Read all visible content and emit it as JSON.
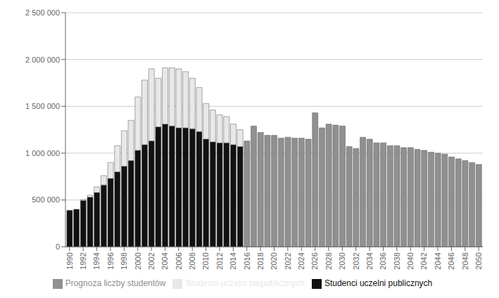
{
  "chart_data": {
    "type": "bar",
    "stacked": true,
    "grid": true,
    "legend": "bottom",
    "x": [
      1990,
      1991,
      1992,
      1993,
      1994,
      1995,
      1996,
      1997,
      1998,
      1999,
      2000,
      2001,
      2002,
      2003,
      2004,
      2005,
      2006,
      2007,
      2008,
      2009,
      2010,
      2011,
      2012,
      2013,
      2014,
      2015,
      2016,
      2017,
      2018,
      2019,
      2020,
      2021,
      2022,
      2023,
      2024,
      2025,
      2026,
      2027,
      2028,
      2029,
      2030,
      2031,
      2032,
      2033,
      2034,
      2035,
      2036,
      2037,
      2038,
      2039,
      2040,
      2041,
      2042,
      2043,
      2044,
      2045,
      2046,
      2047,
      2048,
      2049,
      2050
    ],
    "series": [
      {
        "name": "Studenci uczelni publicznych",
        "color": "#111111",
        "values": [
          390000,
          400000,
          495000,
          530000,
          580000,
          660000,
          730000,
          800000,
          860000,
          920000,
          1030000,
          1090000,
          1130000,
          1280000,
          1310000,
          1290000,
          1270000,
          1270000,
          1260000,
          1230000,
          1150000,
          1120000,
          1110000,
          1110000,
          1090000,
          1070000,
          null,
          null,
          null,
          null,
          null,
          null,
          null,
          null,
          null,
          null,
          null,
          null,
          null,
          null,
          null,
          null,
          null,
          null,
          null,
          null,
          null,
          null,
          null,
          null,
          null,
          null,
          null,
          null,
          null,
          null,
          null,
          null,
          null,
          null,
          null
        ]
      },
      {
        "name": "Studenci uczelni niepublicznych",
        "color": "#e8e8e8",
        "values": [
          0,
          0,
          10000,
          20000,
          60000,
          100000,
          170000,
          280000,
          380000,
          430000,
          570000,
          690000,
          770000,
          520000,
          600000,
          620000,
          630000,
          600000,
          540000,
          470000,
          380000,
          340000,
          300000,
          280000,
          220000,
          180000,
          null,
          null,
          null,
          null,
          null,
          null,
          null,
          null,
          null,
          null,
          null,
          null,
          null,
          null,
          null,
          null,
          null,
          null,
          null,
          null,
          null,
          null,
          null,
          null,
          null,
          null,
          null,
          null,
          null,
          null,
          null,
          null,
          null,
          null,
          null
        ]
      },
      {
        "name": "Prognoza liczby studentów",
        "color": "#909090",
        "values": [
          null,
          null,
          null,
          null,
          null,
          null,
          null,
          null,
          null,
          null,
          null,
          null,
          null,
          null,
          null,
          null,
          null,
          null,
          null,
          null,
          null,
          null,
          null,
          null,
          null,
          null,
          1130000,
          1290000,
          1220000,
          1190000,
          1190000,
          1160000,
          1170000,
          1160000,
          1160000,
          1150000,
          1430000,
          1270000,
          1310000,
          1300000,
          1290000,
          1070000,
          1050000,
          1170000,
          1150000,
          1110000,
          1110000,
          1080000,
          1080000,
          1060000,
          1060000,
          1040000,
          1030000,
          1010000,
          1000000,
          990000,
          960000,
          940000,
          920000,
          900000,
          880000
        ]
      }
    ],
    "xlim": [
      1989.4,
      2050.6
    ],
    "xticks": [
      1990,
      1992,
      1994,
      1996,
      1998,
      2000,
      2002,
      2004,
      2006,
      2008,
      2010,
      2012,
      2014,
      2016,
      2018,
      2020,
      2022,
      2024,
      2026,
      2028,
      2030,
      2032,
      2034,
      2036,
      2038,
      2040,
      2042,
      2044,
      2046,
      2048,
      2050
    ],
    "ylim": [
      0,
      2500000
    ],
    "yticks": [
      0,
      {
        "value": 500000,
        "label": "500 000"
      },
      {
        "value": 1000000,
        "label": "1 000 000"
      },
      {
        "value": 1500000,
        "label": "1 500 000"
      },
      {
        "value": 2000000,
        "label": "2 000 000"
      },
      {
        "value": 2500000,
        "label": "2 500 000"
      }
    ]
  }
}
